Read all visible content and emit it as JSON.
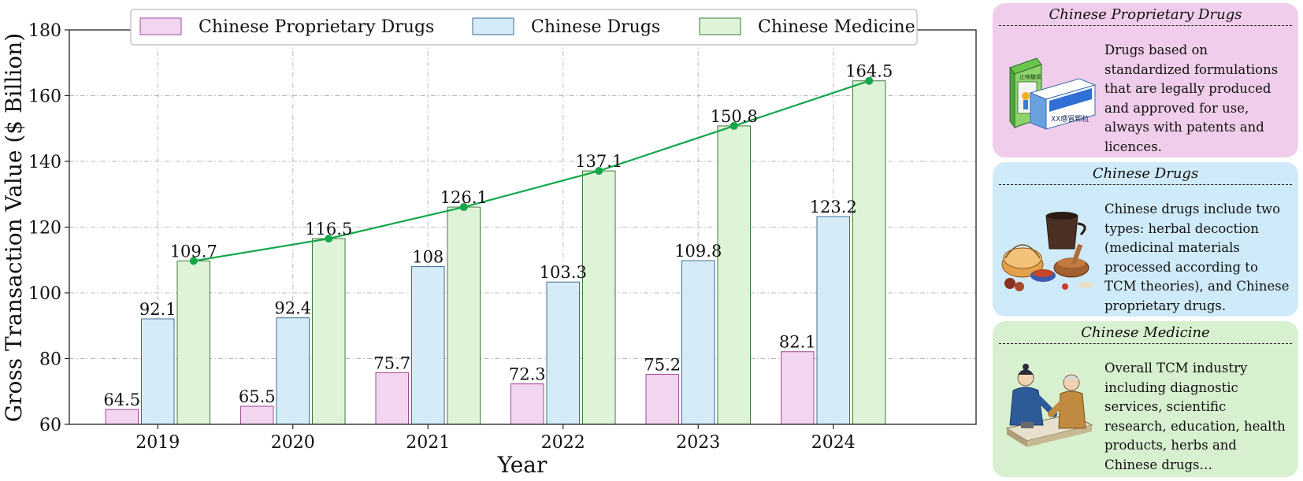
{
  "chart_data": {
    "type": "bar",
    "categories": [
      "2019",
      "2020",
      "2021",
      "2022",
      "2023",
      "2024"
    ],
    "series": [
      {
        "name": "Chinese Proprietary Drugs",
        "values": [
          64.5,
          65.5,
          75.7,
          72.3,
          75.2,
          82.1
        ],
        "color": "#f2d5ee",
        "edge": "#a04a98"
      },
      {
        "name": "Chinese Drugs",
        "values": [
          92.1,
          92.4,
          108,
          103.3,
          109.8,
          123.2
        ],
        "color": "#d5ecf8",
        "edge": "#3a6e96"
      },
      {
        "name": "Chinese Medicine",
        "values": [
          109.7,
          116.5,
          126.1,
          137.1,
          150.8,
          164.5
        ],
        "color": "#dff3d8",
        "edge": "#3f7a3a"
      }
    ],
    "line_series": {
      "name": "Chinese Medicine",
      "values": [
        109.7,
        116.5,
        126.1,
        137.1,
        150.8,
        164.5
      ],
      "color": "#12a84a"
    },
    "value_labels": {
      "Chinese Proprietary Drugs": [
        "64.5",
        "65.5",
        "75.7",
        "72.3",
        "75.2",
        "82.1"
      ],
      "Chinese Drugs": [
        "92.1",
        "92.4",
        "108",
        "103.3",
        "109.8",
        "123.2"
      ],
      "Chinese Medicine": [
        "109.7",
        "116.5",
        "126.1",
        "137.1",
        "150.8",
        "164.5"
      ]
    },
    "xlabel": "Year",
    "ylabel": "Gross Transaction Value ($ Billion)",
    "ylim": [
      60,
      180
    ],
    "yticks": [
      60,
      80,
      100,
      120,
      140,
      160,
      180
    ],
    "grid": true,
    "legend_position": "top-center"
  },
  "cards": [
    {
      "title": "Chinese Proprietary Drugs",
      "text": "Drugs based on standardized formulations that are legally produced and approved for use, always with patents and licences.",
      "color": "#f0cdea",
      "illustration": "medicine-boxes-icon",
      "box_labels": [
        "止咳糖浆",
        "XX感冒颗粒"
      ]
    },
    {
      "title": "Chinese Drugs",
      "text": "Chinese drugs include two types: herbal decoction (medicinal materials processed according to TCM theories), and Chinese proprietary drugs.",
      "color": "#cfeaf8",
      "illustration": "herbs-and-mortar-icon"
    },
    {
      "title": "Chinese Medicine",
      "text": "Overall TCM industry including diagnostic services, scientific research, education, health products, herbs and Chinese drugs…",
      "color": "#d7f0cf",
      "illustration": "doctor-consultation-icon"
    }
  ]
}
